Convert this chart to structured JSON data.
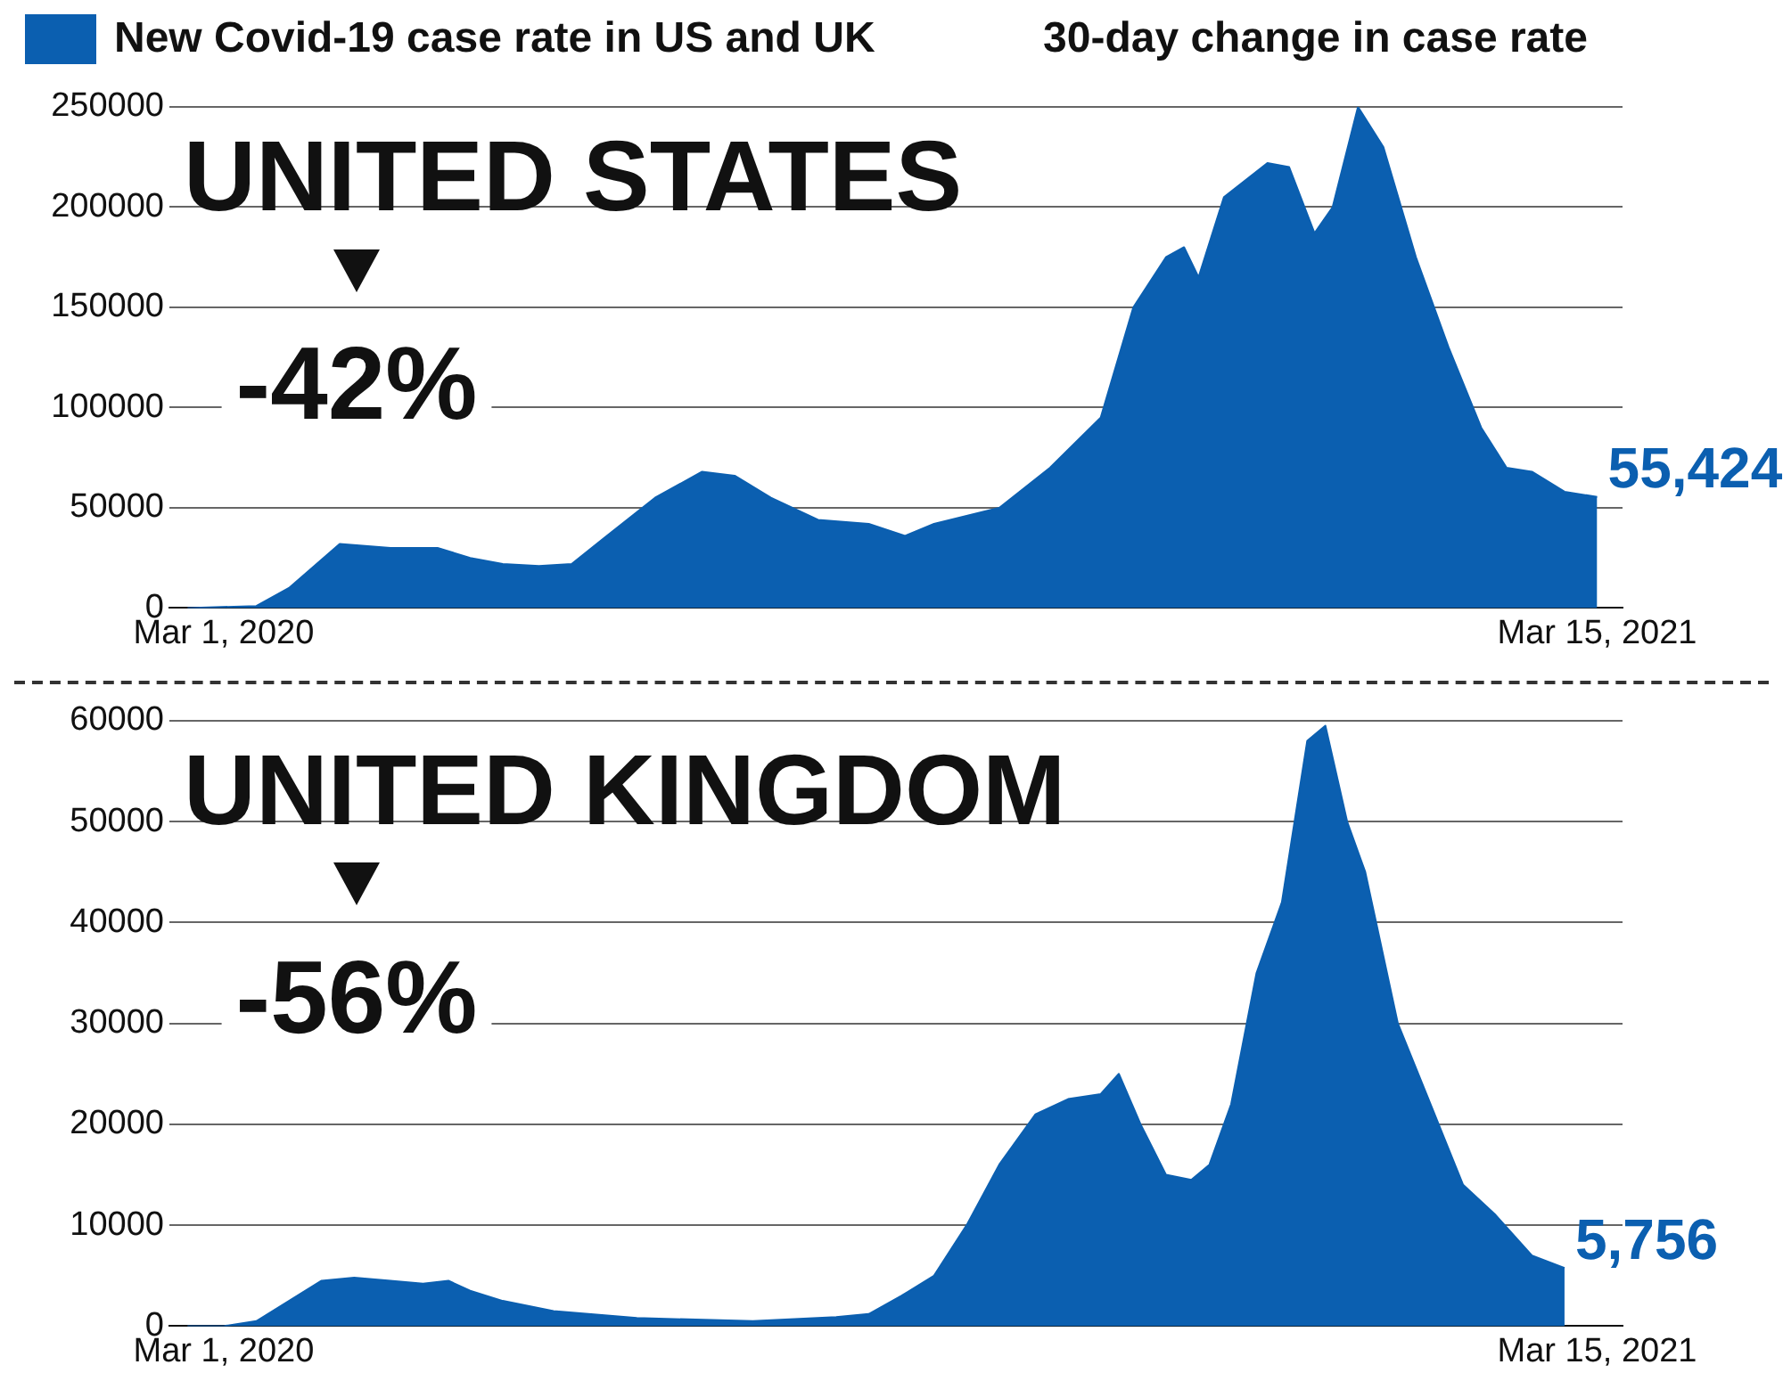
{
  "chart_data": [
    {
      "type": "area",
      "title": "UNITED STATES",
      "subtitle": "30-day change in case rate",
      "annotations": [
        "-42%"
      ],
      "legend": "top left",
      "grid": "y",
      "marker": "none",
      "xlim": [
        "2020-02-15",
        "2021-03-22"
      ],
      "xticks": [
        {
          "value": "2020-03-01",
          "label": "Mar 1, 2020"
        },
        {
          "value": "2021-03-15",
          "label": "Mar 15, 2021"
        }
      ],
      "ylim": [
        0,
        250000
      ],
      "yticks": [
        0,
        50000,
        100000,
        150000,
        200000,
        250000
      ],
      "series": [
        {
          "name": "New Covid-19 case rate in US and UK",
          "color": "#0b5fb0",
          "x": [
            "2020-02-20",
            "2020-03-10",
            "2020-03-19",
            "2020-04-02",
            "2020-04-16",
            "2020-04-29",
            "2020-05-08",
            "2020-05-17",
            "2020-05-27",
            "2020-06-05",
            "2020-06-14",
            "2020-06-28",
            "2020-07-11",
            "2020-07-20",
            "2020-07-30",
            "2020-08-12",
            "2020-08-26",
            "2020-09-05",
            "2020-09-13",
            "2020-10-01",
            "2020-10-15",
            "2020-10-29",
            "2020-11-07",
            "2020-11-16",
            "2020-11-21",
            "2020-11-25",
            "2020-12-02",
            "2020-12-14",
            "2020-12-20",
            "2020-12-27",
            "2021-01-01",
            "2021-01-08",
            "2021-01-15",
            "2021-01-24",
            "2021-02-02",
            "2021-02-11",
            "2021-02-18",
            "2021-02-25",
            "2021-03-06",
            "2021-03-15"
          ],
          "values": [
            0,
            1000,
            10000,
            32000,
            30000,
            30000,
            25000,
            22000,
            21000,
            22000,
            35000,
            55000,
            68000,
            66000,
            55000,
            44000,
            42000,
            36000,
            42000,
            50000,
            70000,
            95000,
            150000,
            175000,
            180000,
            165000,
            205000,
            222000,
            220000,
            187000,
            200000,
            250000,
            230000,
            175000,
            130000,
            90000,
            70000,
            68000,
            58000,
            55424
          ],
          "value_labels": [
            null,
            null,
            null,
            null,
            null,
            null,
            null,
            null,
            null,
            null,
            null,
            null,
            null,
            null,
            null,
            null,
            null,
            null,
            null,
            null,
            null,
            null,
            null,
            null,
            null,
            null,
            null,
            null,
            null,
            null,
            null,
            null,
            null,
            null,
            null,
            null,
            null,
            null,
            null,
            "55,424"
          ]
        }
      ]
    },
    {
      "type": "area",
      "title": "UNITED KINGDOM",
      "annotations": [
        "-56%"
      ],
      "grid": "y",
      "marker": "none",
      "xlim": [
        "2020-02-15",
        "2021-03-22"
      ],
      "xticks": [
        {
          "value": "2020-03-01",
          "label": "Mar 1, 2020"
        },
        {
          "value": "2021-03-15",
          "label": "Mar 15, 2021"
        }
      ],
      "ylim": [
        0,
        60000
      ],
      "yticks": [
        0,
        10000,
        20000,
        30000,
        40000,
        50000,
        60000
      ],
      "series": [
        {
          "color": "#0b5fb0",
          "x": [
            "2020-02-20",
            "2020-03-01",
            "2020-03-10",
            "2020-03-19",
            "2020-03-28",
            "2020-04-06",
            "2020-04-16",
            "2020-04-25",
            "2020-05-02",
            "2020-05-08",
            "2020-05-17",
            "2020-05-31",
            "2020-06-23",
            "2020-07-25",
            "2020-08-17",
            "2020-08-26",
            "2020-09-04",
            "2020-09-13",
            "2020-09-22",
            "2020-10-01",
            "2020-10-11",
            "2020-10-20",
            "2020-10-29",
            "2020-11-03",
            "2020-11-09",
            "2020-11-16",
            "2020-11-23",
            "2020-11-28",
            "2020-12-04",
            "2020-12-11",
            "2020-12-18",
            "2020-12-25",
            "2020-12-30",
            "2021-01-05",
            "2021-01-10",
            "2021-01-19",
            "2021-01-28",
            "2021-02-06",
            "2021-02-15",
            "2021-02-25",
            "2021-03-06"
          ],
          "values": [
            0,
            0,
            500,
            2500,
            4500,
            4800,
            4500,
            4200,
            4500,
            3500,
            2500,
            1500,
            800,
            500,
            900,
            1200,
            3000,
            5000,
            10000,
            16000,
            21000,
            22500,
            23000,
            25000,
            20000,
            15000,
            14500,
            16000,
            22000,
            35000,
            42000,
            58000,
            59500,
            50000,
            45000,
            30000,
            22000,
            14000,
            11000,
            7000,
            5756
          ],
          "value_labels": [
            null,
            null,
            null,
            null,
            null,
            null,
            null,
            null,
            null,
            null,
            null,
            null,
            null,
            null,
            null,
            null,
            null,
            null,
            null,
            null,
            null,
            null,
            null,
            null,
            null,
            null,
            null,
            null,
            null,
            null,
            null,
            null,
            null,
            null,
            null,
            null,
            null,
            null,
            null,
            null,
            "5,756"
          ]
        }
      ]
    }
  ]
}
